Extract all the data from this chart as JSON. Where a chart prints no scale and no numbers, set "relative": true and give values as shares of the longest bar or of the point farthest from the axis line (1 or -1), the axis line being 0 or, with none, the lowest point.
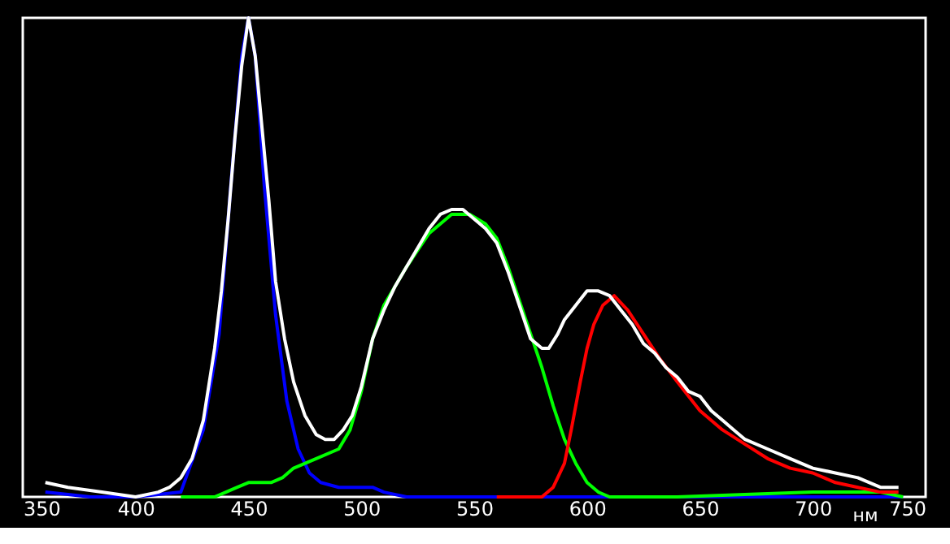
{
  "chart_data": {
    "type": "line",
    "relative": true,
    "xlabel": "нм",
    "xlim": [
      350,
      750
    ],
    "xticks": [
      350,
      400,
      450,
      500,
      550,
      600,
      650,
      700,
      750
    ],
    "grid": false,
    "marker": "none",
    "line_style": "solid",
    "series": [
      {
        "color": "#0000ff",
        "x": [
          360,
          380,
          400,
          420,
          430,
          437,
          442,
          447,
          450,
          453,
          457,
          462,
          467,
          472,
          477,
          482,
          490,
          500,
          505,
          510,
          520,
          530,
          560,
          600,
          650,
          700,
          740
        ],
        "values": [
          0.01,
          0.0,
          0.0,
          0.01,
          0.14,
          0.34,
          0.64,
          0.92,
          1.0,
          0.92,
          0.65,
          0.38,
          0.2,
          0.1,
          0.05,
          0.03,
          0.02,
          0.02,
          0.02,
          0.01,
          0.0,
          0.0,
          0.0,
          0.0,
          0.0,
          0.0,
          0.0
        ]
      },
      {
        "color": "#00ff00",
        "x": [
          420,
          435,
          440,
          445,
          450,
          455,
          460,
          465,
          470,
          480,
          490,
          495,
          500,
          505,
          510,
          515,
          520,
          530,
          540,
          548,
          555,
          560,
          565,
          570,
          575,
          580,
          585,
          590,
          595,
          600,
          605,
          610,
          620,
          640,
          700,
          730,
          740
        ],
        "values": [
          0.0,
          0.0,
          0.01,
          0.02,
          0.03,
          0.03,
          0.03,
          0.04,
          0.06,
          0.08,
          0.1,
          0.14,
          0.22,
          0.33,
          0.4,
          0.44,
          0.48,
          0.55,
          0.59,
          0.59,
          0.57,
          0.54,
          0.48,
          0.41,
          0.34,
          0.27,
          0.19,
          0.12,
          0.07,
          0.03,
          0.01,
          0.0,
          0.0,
          0.0,
          0.01,
          0.01,
          0.0
        ]
      },
      {
        "color": "#ff0000",
        "x": [
          560,
          580,
          585,
          590,
          593,
          597,
          600,
          603,
          607,
          612,
          618,
          625,
          632,
          640,
          650,
          660,
          670,
          680,
          690,
          700,
          710,
          720,
          730,
          738
        ],
        "values": [
          0.0,
          0.0,
          0.02,
          0.07,
          0.14,
          0.24,
          0.31,
          0.36,
          0.4,
          0.42,
          0.39,
          0.34,
          0.29,
          0.24,
          0.18,
          0.14,
          0.11,
          0.08,
          0.06,
          0.05,
          0.03,
          0.02,
          0.01,
          0.01
        ]
      },
      {
        "color": "#ffffff",
        "x": [
          360,
          370,
          385,
          400,
          410,
          415,
          420,
          425,
          430,
          435,
          438,
          441,
          444,
          447,
          450,
          453,
          456,
          459,
          462,
          466,
          470,
          475,
          480,
          484,
          488,
          492,
          496,
          500,
          505,
          510,
          515,
          520,
          525,
          530,
          535,
          540,
          545,
          550,
          555,
          560,
          565,
          570,
          575,
          580,
          583,
          587,
          590,
          595,
          600,
          605,
          610,
          615,
          620,
          625,
          630,
          635,
          640,
          645,
          650,
          655,
          660,
          665,
          670,
          680,
          690,
          700,
          710,
          720,
          730,
          738
        ],
        "values": [
          0.03,
          0.02,
          0.01,
          0.0,
          0.01,
          0.02,
          0.04,
          0.08,
          0.16,
          0.31,
          0.43,
          0.58,
          0.75,
          0.9,
          1.0,
          0.92,
          0.77,
          0.62,
          0.45,
          0.33,
          0.24,
          0.17,
          0.13,
          0.12,
          0.12,
          0.14,
          0.17,
          0.23,
          0.33,
          0.39,
          0.44,
          0.48,
          0.52,
          0.56,
          0.59,
          0.6,
          0.6,
          0.58,
          0.56,
          0.53,
          0.47,
          0.4,
          0.33,
          0.31,
          0.31,
          0.34,
          0.37,
          0.4,
          0.43,
          0.43,
          0.42,
          0.39,
          0.36,
          0.32,
          0.3,
          0.27,
          0.25,
          0.22,
          0.21,
          0.18,
          0.16,
          0.14,
          0.12,
          0.1,
          0.08,
          0.06,
          0.05,
          0.04,
          0.02,
          0.02
        ]
      }
    ]
  }
}
